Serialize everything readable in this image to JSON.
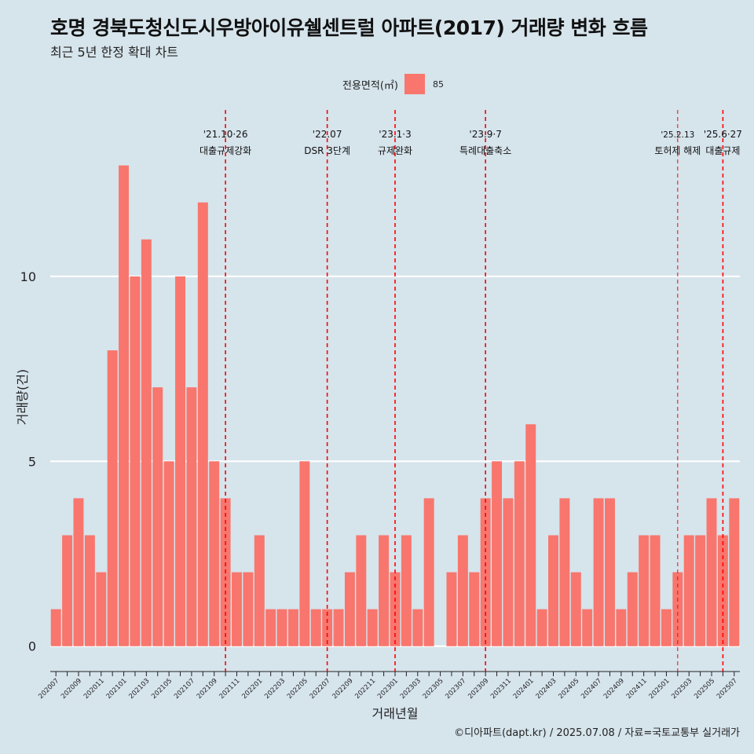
{
  "header": {
    "title": "호명 경북도청신도시우방아이유쉘센트럴 아파트(2017) 거래량 변화 흐름",
    "subtitle": "최근 5년 한정 확대 차트"
  },
  "legend": {
    "title": "전용면적(㎡)",
    "value": "85",
    "color": "#f8766d"
  },
  "caption": "©디아파트(dapt.kr) / 2025.07.08 / 자료=국토교통부 실거래가",
  "chart_data": {
    "type": "bar",
    "xlabel": "거래년월",
    "ylabel": "거래량(건)",
    "ylim": [
      -0.6,
      14.5
    ],
    "yticks": [
      0,
      5,
      10
    ],
    "grid": true,
    "legend_position": "top",
    "bar_color": "#f8766d",
    "categories": [
      "202007",
      "202008",
      "202009",
      "202010",
      "202011",
      "202012",
      "202101",
      "202102",
      "202103",
      "202104",
      "202105",
      "202106",
      "202107",
      "202108",
      "202109",
      "202110",
      "202111",
      "202112",
      "202201",
      "202202",
      "202203",
      "202204",
      "202205",
      "202206",
      "202207",
      "202208",
      "202209",
      "202210",
      "202211",
      "202212",
      "202301",
      "202302",
      "202303",
      "202304",
      "202305",
      "202306",
      "202307",
      "202308",
      "202309",
      "202310",
      "202311",
      "202312",
      "202401",
      "202402",
      "202403",
      "202404",
      "202405",
      "202406",
      "202407",
      "202408",
      "202409",
      "202410",
      "202411",
      "202412",
      "202501",
      "202502",
      "202503",
      "202504",
      "202505",
      "202506",
      "202507"
    ],
    "values": [
      1,
      3,
      4,
      3,
      2,
      8,
      13,
      10,
      11,
      7,
      5,
      10,
      7,
      12,
      5,
      4,
      2,
      2,
      3,
      1,
      1,
      1,
      5,
      1,
      1,
      1,
      2,
      3,
      1,
      3,
      2,
      3,
      1,
      4,
      0,
      2,
      3,
      2,
      4,
      5,
      4,
      5,
      6,
      1,
      3,
      4,
      2,
      1,
      4,
      4,
      1,
      2,
      3,
      3,
      1,
      2,
      3,
      3,
      4,
      3,
      4
    ],
    "annotations": [
      {
        "category": "202110",
        "date": "'21.10·26",
        "label": "대출규제강화"
      },
      {
        "category": "202207",
        "date": "'22.07",
        "label": "DSR 3단계"
      },
      {
        "category": "202301",
        "date": "'23.1·3",
        "label": "규제완화"
      },
      {
        "category": "202309",
        "date": "'23.9·7",
        "label": "특례대출축소"
      },
      {
        "category": "202502",
        "date": "'25.2.13",
        "label": "토허제 해제"
      },
      {
        "category": "202506",
        "date": "'25.6·27",
        "label": "대출규제"
      }
    ]
  }
}
